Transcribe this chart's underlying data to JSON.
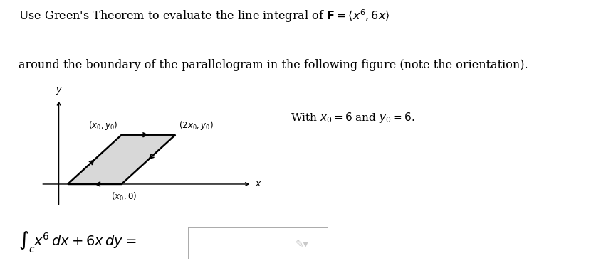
{
  "title_line1": "Use Green's Theorem to evaluate the line integral of $\\mathbf{F} = \\langle x^6, 6x\\rangle$",
  "title_line2": "around the boundary of the parallelogram in the following figure (note the orientation).",
  "with_text": "$\\textit{  }$With $x_0 = 6$ and $y_0 = 6.$",
  "parallelogram_fill": "#d8d8d8",
  "parallelogram_edge": "#000000",
  "background": "#ffffff",
  "label_x0y0": "$(x_0,y_0)$",
  "label_2x0y0": "$(2x_0,y_0)$",
  "label_x00": "$(x_0, 0)$",
  "axis_label_x": "$x$",
  "axis_label_y": "$y$",
  "font_size_title": 11.5,
  "font_size_labels": 8.5,
  "font_size_integral": 14
}
